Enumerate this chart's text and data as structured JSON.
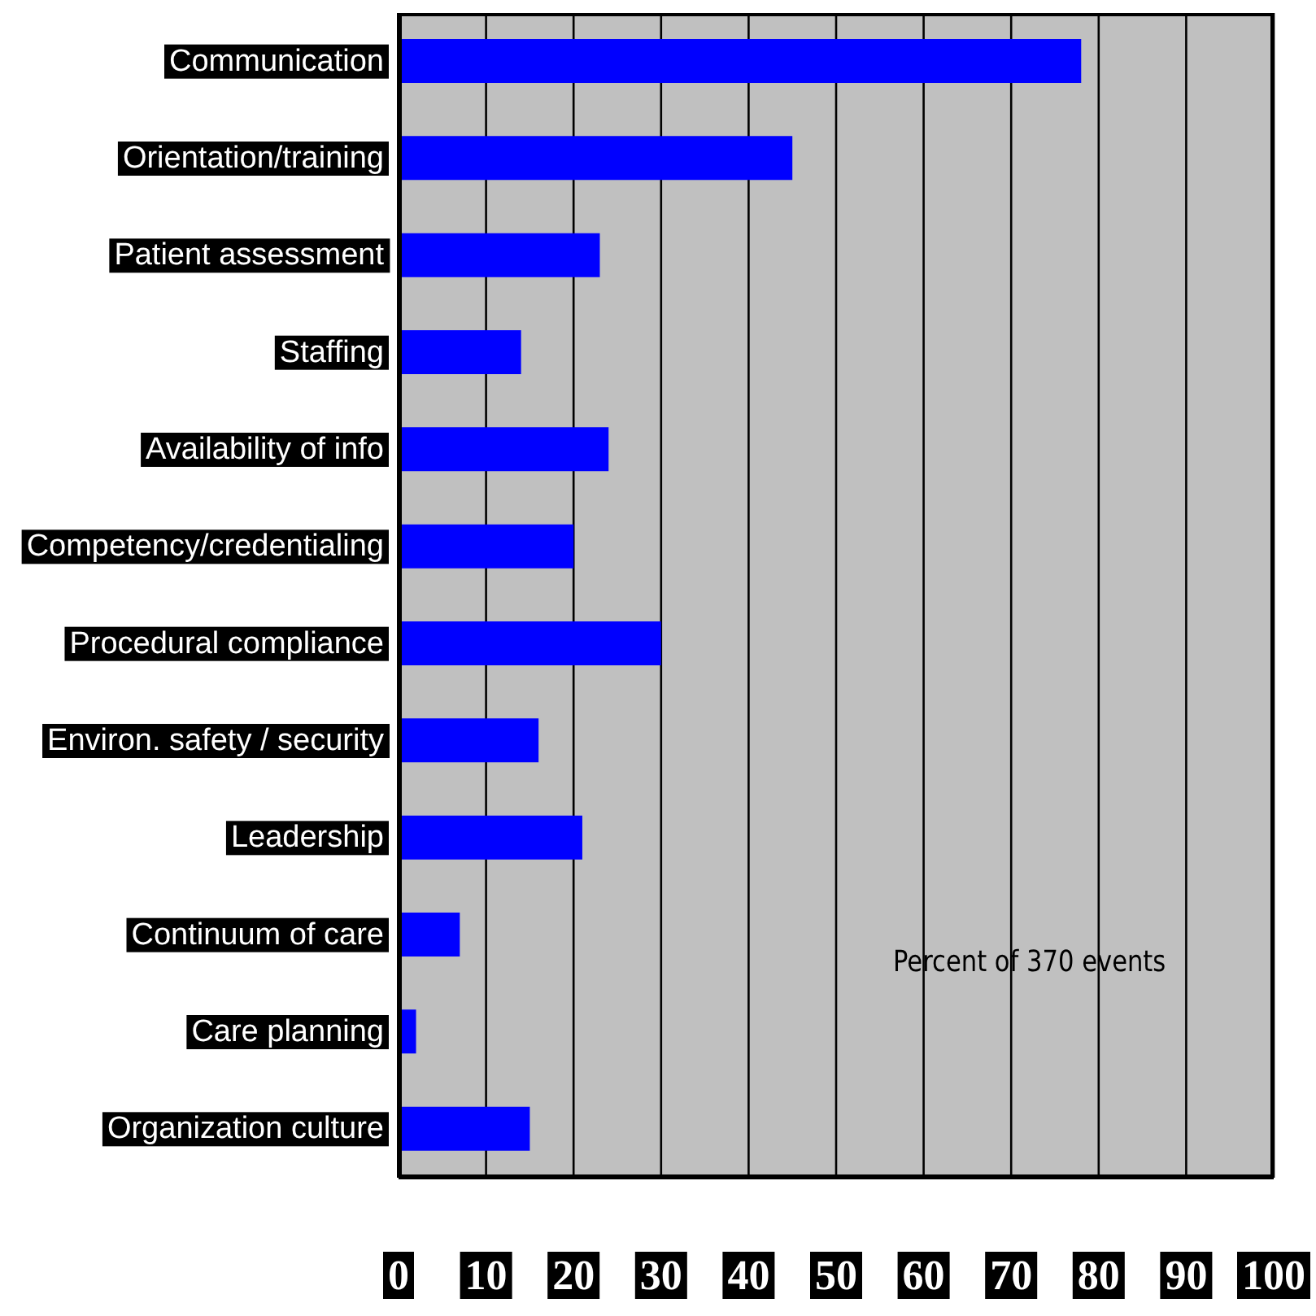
{
  "chart_data": {
    "type": "bar",
    "orientation": "horizontal",
    "categories": [
      "Communication",
      "Orientation/training",
      "Patient assessment",
      "Staffing",
      "Availability of info",
      "Competency/credentialing",
      "Procedural compliance",
      "Environ. safety / security",
      "Leadership",
      "Continuum of care",
      "Care planning",
      "Organization culture"
    ],
    "values": [
      78,
      45,
      23,
      14,
      24,
      20,
      30,
      16,
      21,
      7,
      2,
      15
    ],
    "color": "#0000ff",
    "xlim": [
      0,
      100
    ],
    "xticks": [
      0,
      10,
      20,
      30,
      40,
      50,
      60,
      70,
      80,
      90,
      100
    ],
    "grid": "x",
    "annotations": [
      "Percent of 370 events"
    ]
  }
}
